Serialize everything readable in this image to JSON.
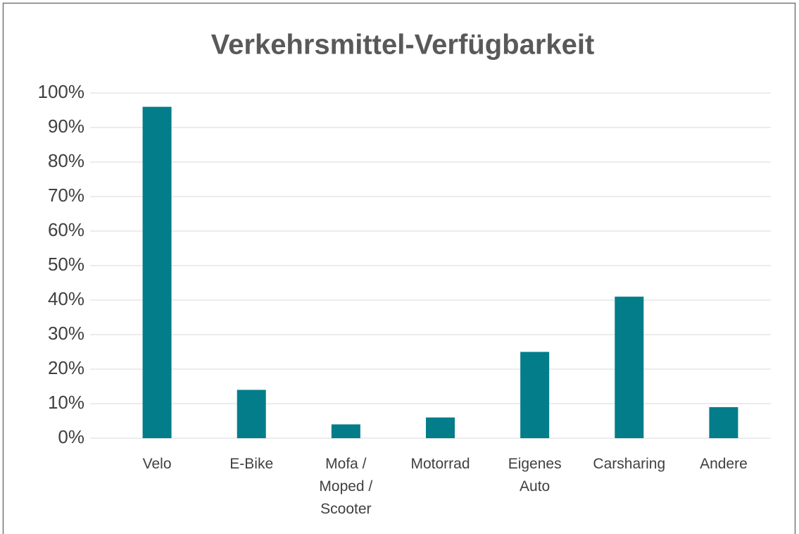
{
  "chart_data": {
    "type": "bar",
    "title": "Verkehrsmittel-Verfügbarkeit",
    "categories": [
      "Velo",
      "E-Bike",
      "Mofa / Moped / Scooter",
      "Motorrad",
      "Eigenes Auto",
      "Carsharing",
      "Andere"
    ],
    "values": [
      96,
      14,
      4,
      6,
      25,
      41,
      9
    ],
    "color": "#037d8a",
    "ylim": [
      0,
      100
    ],
    "yticks": [
      {
        "value": 0,
        "label": "0%"
      },
      {
        "value": 10,
        "label": "10%"
      },
      {
        "value": 20,
        "label": "20%"
      },
      {
        "value": 30,
        "label": "30%"
      },
      {
        "value": 40,
        "label": "40%"
      },
      {
        "value": 50,
        "label": "50%"
      },
      {
        "value": 60,
        "label": "60%"
      },
      {
        "value": 70,
        "label": "70%"
      },
      {
        "value": 80,
        "label": "80%"
      },
      {
        "value": 90,
        "label": "90%"
      },
      {
        "value": 100,
        "label": "100%"
      }
    ],
    "grid": true
  }
}
